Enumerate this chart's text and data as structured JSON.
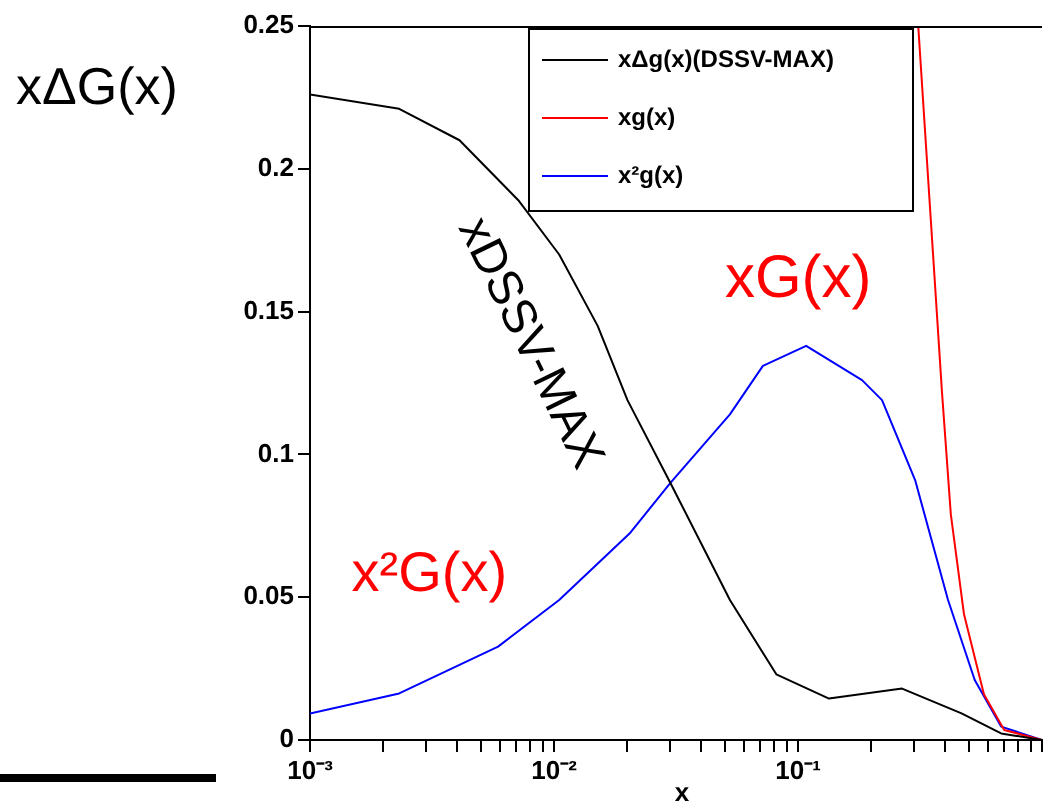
{
  "chart_data": {
    "type": "line",
    "xlabel": "x",
    "ylabel": "xΔG(x)",
    "log": "x",
    "xlim": [
      0.001,
      1
    ],
    "ylim": [
      0,
      0.25
    ],
    "xticks": [
      {
        "value": 0.001,
        "label": "10⁻³"
      },
      {
        "value": 0.002,
        "label": null
      },
      {
        "value": 0.003,
        "label": null
      },
      {
        "value": 0.004,
        "label": null
      },
      {
        "value": 0.005,
        "label": null
      },
      {
        "value": 0.006,
        "label": null
      },
      {
        "value": 0.007,
        "label": null
      },
      {
        "value": 0.008,
        "label": null
      },
      {
        "value": 0.009,
        "label": null
      },
      {
        "value": 0.01,
        "label": "10⁻²"
      },
      {
        "value": 0.02,
        "label": null
      },
      {
        "value": 0.03,
        "label": null
      },
      {
        "value": 0.04,
        "label": null
      },
      {
        "value": 0.05,
        "label": null
      },
      {
        "value": 0.06,
        "label": null
      },
      {
        "value": 0.07,
        "label": null
      },
      {
        "value": 0.08,
        "label": null
      },
      {
        "value": 0.09,
        "label": null
      },
      {
        "value": 0.1,
        "label": "10⁻¹"
      },
      {
        "value": 0.2,
        "label": null
      },
      {
        "value": 0.3,
        "label": null
      },
      {
        "value": 0.4,
        "label": null
      },
      {
        "value": 0.5,
        "label": null
      },
      {
        "value": 0.6,
        "label": null
      },
      {
        "value": 0.7,
        "label": null
      },
      {
        "value": 0.8,
        "label": null
      },
      {
        "value": 0.9,
        "label": null
      },
      {
        "value": 1,
        "label": null
      }
    ],
    "yticks": [
      0,
      0.05,
      0.1,
      0.15,
      0.2,
      0.25
    ],
    "grid": false,
    "legend": "top right",
    "marker": "none",
    "line_style": "solid",
    "series": [
      {
        "name": "xΔg(x)(DSSV-MAX)",
        "color": "#000000",
        "x": [
          0.001,
          0.00232,
          0.0041,
          0.00714,
          0.0105,
          0.0151,
          0.02,
          0.03,
          0.0526,
          0.0815,
          0.134,
          0.267,
          0.468,
          0.68,
          1
        ],
        "values": [
          0.226,
          0.221,
          0.21,
          0.189,
          0.17,
          0.145,
          0.119,
          0.09,
          0.049,
          0.023,
          0.0145,
          0.018,
          0.0093,
          0.0023,
          0
        ]
      },
      {
        "name": "xg(x)",
        "color": "#ff0000",
        "x": [
          0.311,
          0.389,
          0.423,
          0.479,
          0.578,
          0.7,
          1
        ],
        "values": [
          0.25,
          0.122,
          0.079,
          0.044,
          0.016,
          0.0035,
          0
        ]
      },
      {
        "name": "x²g(x)",
        "color": "#0000ff",
        "x": [
          0.001,
          0.00232,
          0.0059,
          0.0105,
          0.0204,
          0.03,
          0.0526,
          0.0718,
          0.108,
          0.183,
          0.221,
          0.302,
          0.412,
          0.53,
          0.68,
          1
        ],
        "values": [
          0.0093,
          0.0163,
          0.0327,
          0.049,
          0.0723,
          0.09,
          0.114,
          0.131,
          0.138,
          0.126,
          0.119,
          0.091,
          0.049,
          0.021,
          0.0047,
          0
        ]
      }
    ],
    "annotations": [
      "xDSSV-MAX",
      "xG(x)",
      "x²G(x)"
    ]
  }
}
